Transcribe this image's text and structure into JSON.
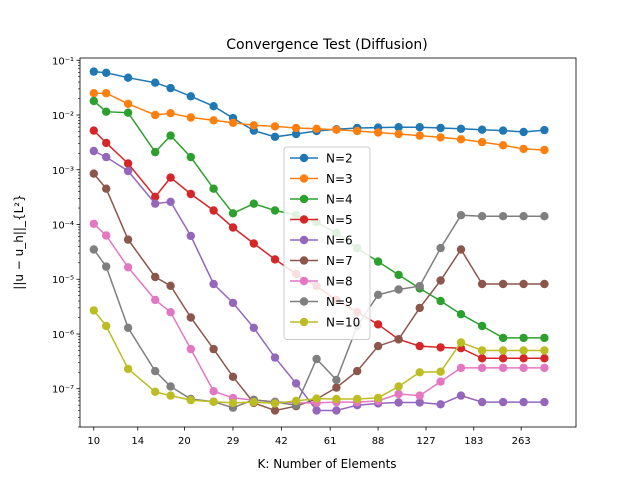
{
  "chart_data": {
    "type": "line",
    "title": "Convergence Test (Diffusion)",
    "xlabel": "K: Number of Elements",
    "ylabel": "||u − u_h||_{L²}",
    "x_scale": "log",
    "y_scale": "log",
    "xlim": [
      9.0,
      400
    ],
    "ylim": [
      2e-08,
      0.11
    ],
    "x_ticks": [
      10,
      14,
      20,
      29,
      42,
      61,
      88,
      127,
      183,
      263
    ],
    "y_ticks": [
      {
        "value": 1e-07,
        "label": "10⁻⁷"
      },
      {
        "value": 1e-06,
        "label": "10⁻⁶"
      },
      {
        "value": 1e-05,
        "label": "10⁻⁵"
      },
      {
        "value": 0.0001,
        "label": "10⁻⁴"
      },
      {
        "value": 0.001,
        "label": "10⁻³"
      },
      {
        "value": 0.01,
        "label": "10⁻²"
      },
      {
        "value": 0.1,
        "label": "10⁻¹"
      }
    ],
    "grid": false,
    "legend_position": "center",
    "x": [
      10,
      11,
      13,
      16,
      18,
      21,
      25,
      29,
      34,
      40,
      47,
      55,
      64,
      75,
      88,
      103,
      121,
      142,
      166,
      195,
      229,
      268,
      314
    ],
    "series": [
      {
        "name": "N=2",
        "color": "#1f77b4",
        "values": [
          0.062,
          0.059,
          0.048,
          0.039,
          0.031,
          0.022,
          0.0145,
          0.0088,
          0.0052,
          0.004,
          0.0045,
          0.0051,
          0.0055,
          0.0058,
          0.0059,
          0.006,
          0.006,
          0.0058,
          0.0056,
          0.0054,
          0.0052,
          0.0049,
          0.0053
        ]
      },
      {
        "name": "N=3",
        "color": "#ff7f0e",
        "values": [
          0.025,
          0.025,
          0.016,
          0.01,
          0.0108,
          0.009,
          0.008,
          0.0072,
          0.0065,
          0.0062,
          0.0058,
          0.0056,
          0.0054,
          0.0051,
          0.0048,
          0.0045,
          0.0042,
          0.0039,
          0.0036,
          0.0032,
          0.0028,
          0.0024,
          0.0023
        ]
      },
      {
        "name": "N=4",
        "color": "#2ca02c",
        "values": [
          0.018,
          0.0115,
          0.011,
          0.0021,
          0.0042,
          0.0017,
          0.00045,
          0.00016,
          0.00024,
          0.00018,
          0.00015,
          0.00011,
          7e-05,
          3.7e-05,
          2.1e-05,
          1.2e-05,
          6.8e-06,
          4e-06,
          2.3e-06,
          1.4e-06,
          8.5e-07,
          8.5e-07,
          8.5e-07
        ]
      },
      {
        "name": "N=5",
        "color": "#d62728",
        "values": [
          0.0052,
          0.0031,
          0.0013,
          0.00032,
          0.00072,
          0.00036,
          0.00018,
          8.8e-05,
          4.5e-05,
          2.3e-05,
          1.25e-05,
          7.5e-06,
          4.2e-06,
          2.5e-06,
          1.5e-06,
          8e-07,
          6e-07,
          5.7e-07,
          5.5e-07,
          3.6e-07,
          3.6e-07,
          3.6e-07,
          3.6e-07
        ]
      },
      {
        "name": "N=6",
        "color": "#9467bd",
        "values": [
          0.0022,
          0.0017,
          0.00095,
          0.00024,
          0.00026,
          6.2e-05,
          8.2e-06,
          3.7e-06,
          1.3e-06,
          3.7e-07,
          1.25e-07,
          4e-08,
          4e-08,
          5e-08,
          5.4e-08,
          5.6e-08,
          5.6e-08,
          5.2e-08,
          7.5e-08,
          5.7e-08,
          5.7e-08,
          5.7e-08,
          5.7e-08
        ]
      },
      {
        "name": "N=7",
        "color": "#8c564b",
        "values": [
          0.00085,
          0.00045,
          5.3e-05,
          1.1e-05,
          7.6e-06,
          2e-06,
          5.3e-07,
          1.65e-07,
          5.5e-08,
          4e-08,
          4.8e-08,
          6.5e-08,
          1.05e-07,
          2.1e-07,
          6e-07,
          8e-07,
          3e-06,
          9.5e-06,
          3.5e-05,
          8.2e-06,
          8.2e-06,
          8.2e-06,
          8.2e-06
        ]
      },
      {
        "name": "N=8",
        "color": "#e377c2",
        "values": [
          0.000103,
          6.3e-05,
          1.65e-05,
          4.2e-06,
          2.5e-06,
          5.3e-07,
          9e-08,
          6.8e-08,
          6.2e-08,
          5.8e-08,
          5.5e-08,
          5.5e-08,
          5.7e-08,
          5.7e-08,
          6e-08,
          8e-08,
          7.5e-08,
          1.35e-07,
          2.4e-07,
          2.4e-07,
          2.4e-07,
          2.4e-07,
          2.4e-07
        ]
      },
      {
        "name": "N=9",
        "color": "#7f7f7f",
        "values": [
          3.5e-05,
          1.7e-05,
          1.3e-06,
          2.1e-07,
          1.1e-07,
          6.5e-08,
          5.8e-08,
          4.5e-08,
          6.3e-08,
          5.7e-08,
          5e-08,
          3.5e-07,
          1.45e-07,
          1.4e-06,
          5.2e-06,
          6.5e-06,
          7.5e-06,
          3.7e-05,
          0.000148,
          0.000142,
          0.000142,
          0.000142,
          0.000142
        ]
      },
      {
        "name": "N=10",
        "color": "#bcbd22",
        "values": [
          2.7e-06,
          1.4e-06,
          2.3e-07,
          8.8e-08,
          7.5e-08,
          6.2e-08,
          5.8e-08,
          5.5e-08,
          5.7e-08,
          5.4e-08,
          6e-08,
          6.6e-08,
          6.5e-08,
          6.5e-08,
          6.8e-08,
          1.1e-07,
          2e-07,
          2.05e-07,
          7e-07,
          5e-07,
          5e-07,
          5e-07,
          5e-07
        ]
      }
    ]
  }
}
